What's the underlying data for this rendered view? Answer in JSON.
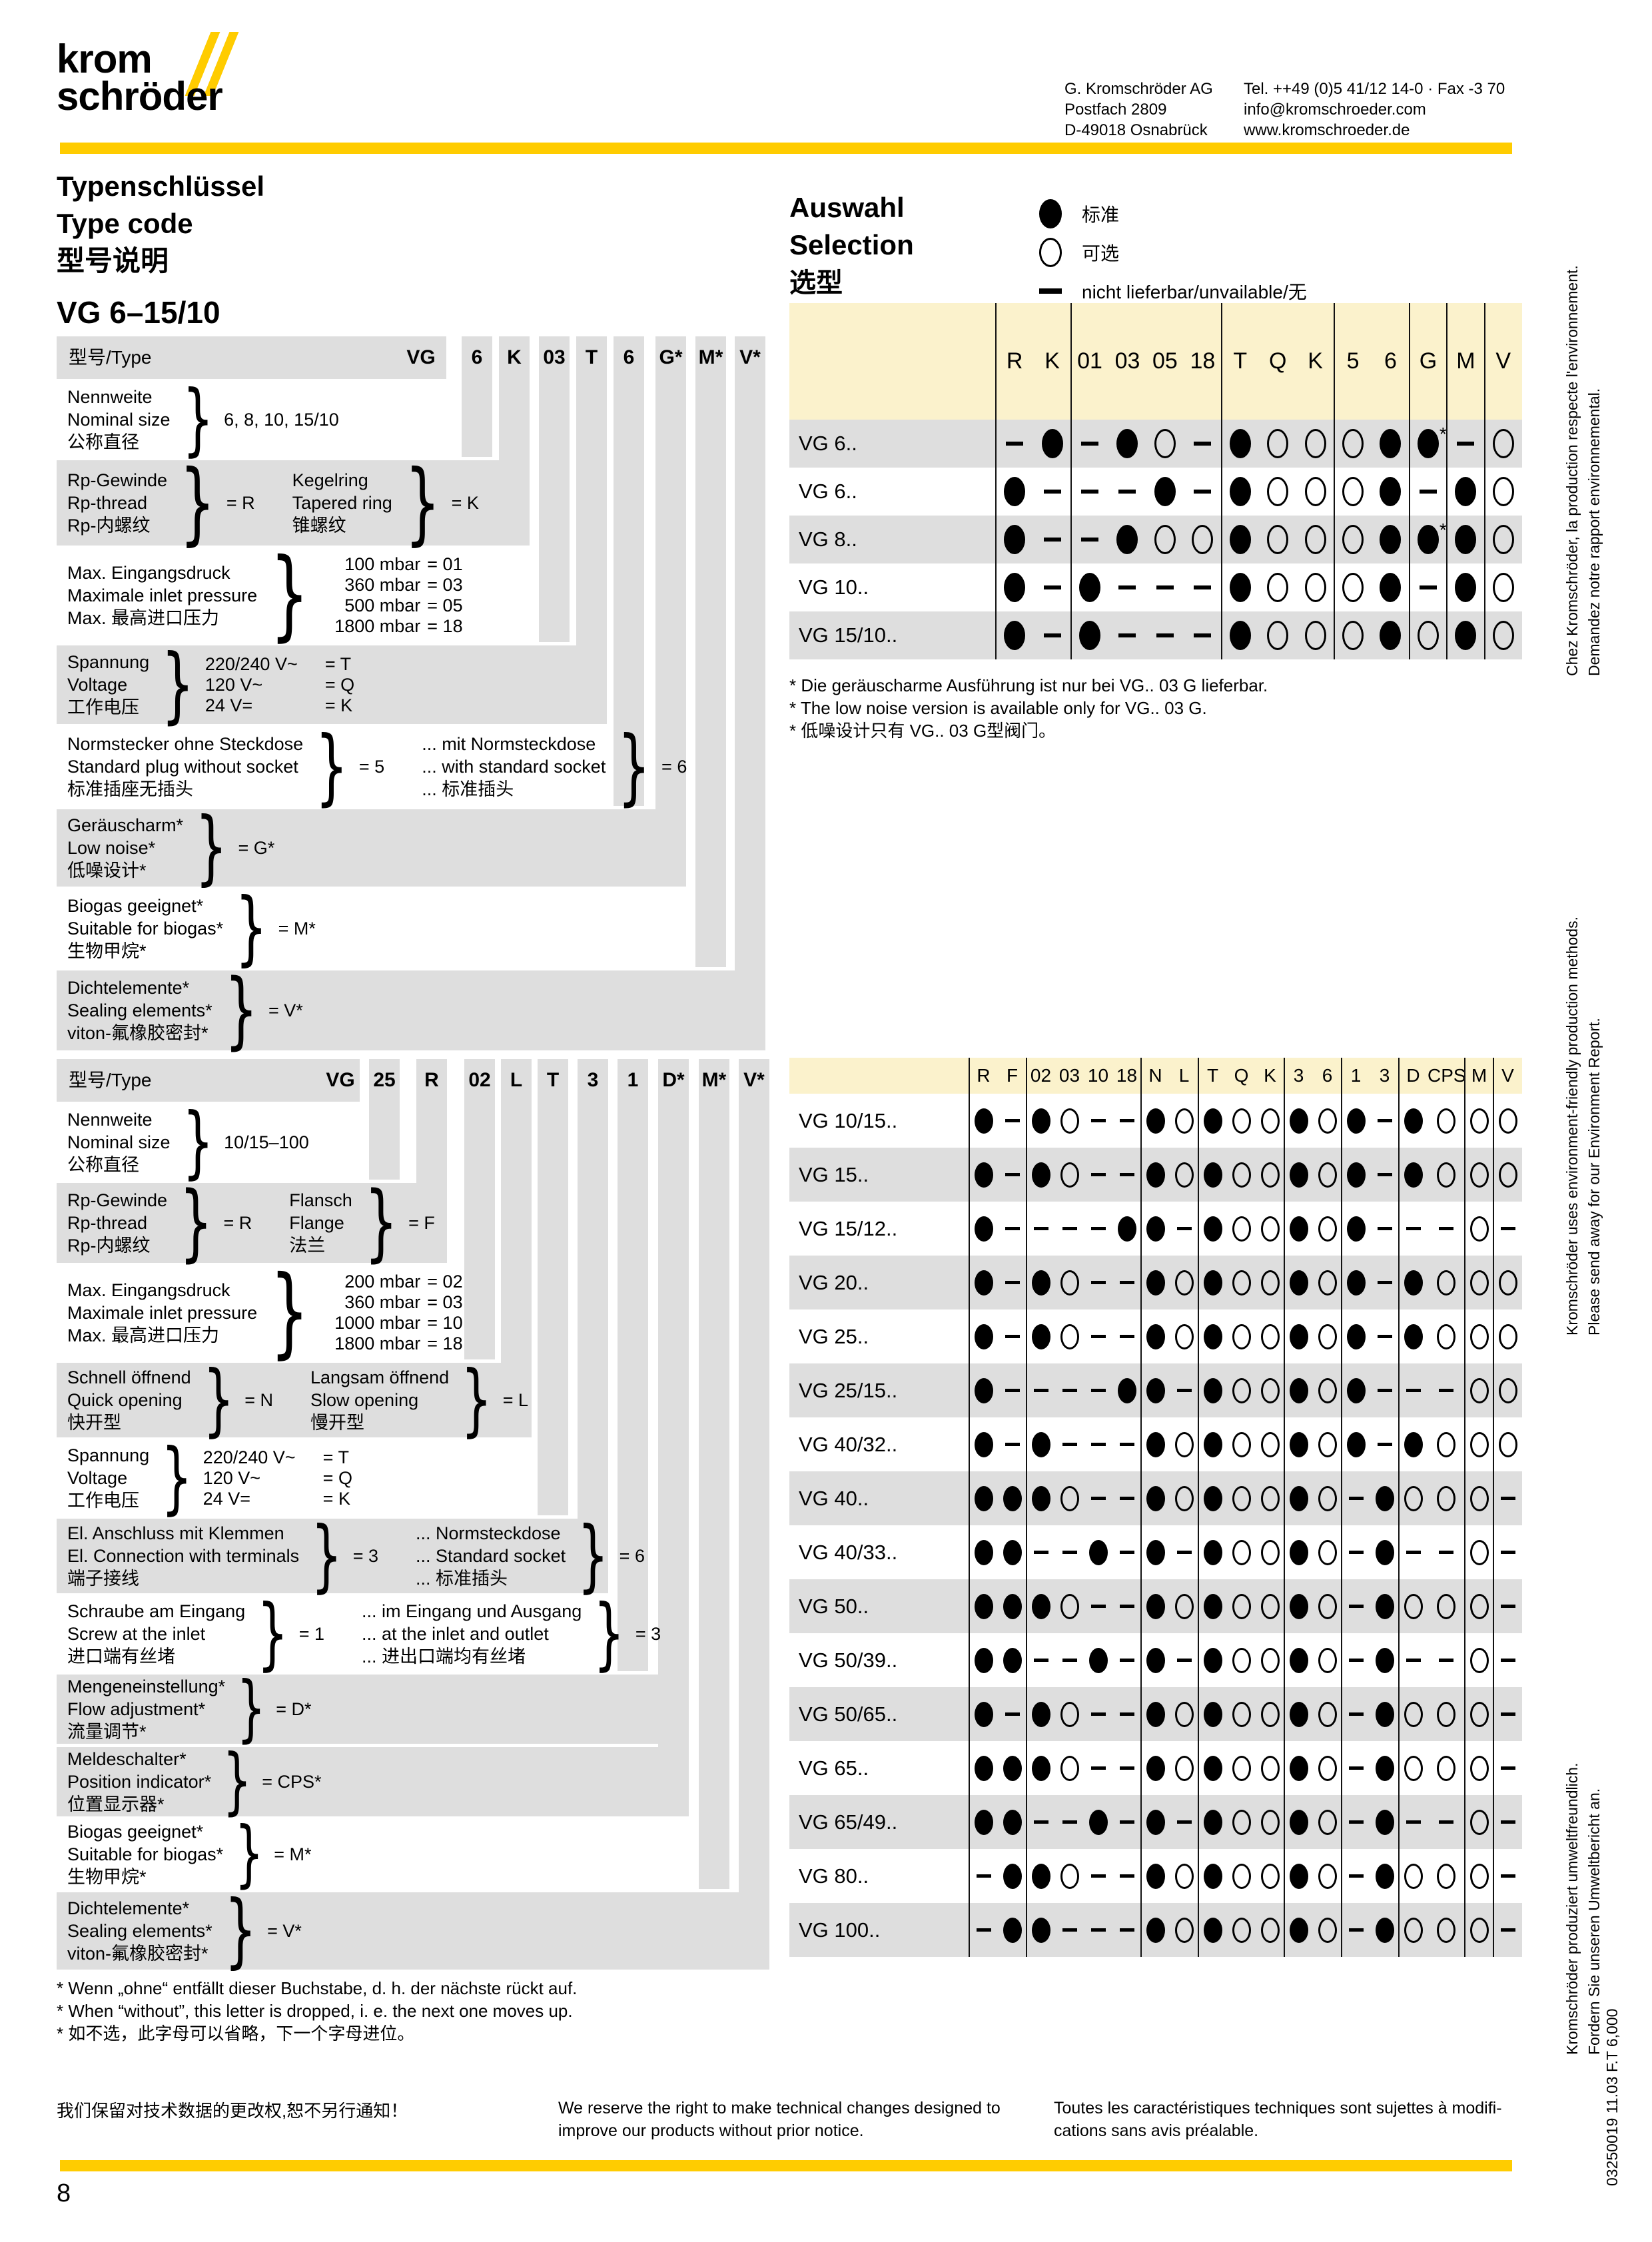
{
  "colors": {
    "brand_yellow": "#FFCC00",
    "band_yellow": "#FBF2CC",
    "row_gray": "#DEDEDE"
  },
  "page": {
    "number": "8"
  },
  "brand": {
    "logo_top": "krom",
    "logo_bottom": "schröder",
    "address": [
      "G. Kromschröder AG",
      "Postfach 2809",
      "D-49018 Osnabrück"
    ],
    "contact": [
      "Tel. ++49 (0)5 41/12 14-0 · Fax -3 70",
      "info@kromschroeder.com",
      "www.kromschroeder.de"
    ]
  },
  "heading": {
    "lines": [
      "Typenschlüssel",
      "Type code",
      "型号说明"
    ]
  },
  "selection": {
    "lines": [
      "Auswahl",
      "Selection",
      "选型"
    ],
    "legend": [
      {
        "symbol": "filled",
        "label": "标准"
      },
      {
        "symbol": "open",
        "label": "可选"
      },
      {
        "symbol": "dash",
        "label": "nicht lieferbar/unvailable/无"
      }
    ]
  },
  "section1": {
    "title": "VG 6–15/10",
    "type_label": "型号/Type",
    "codes": [
      "VG",
      "6",
      "K",
      "03",
      "T",
      "6",
      "G*",
      "M*",
      "V*"
    ],
    "rows": [
      {
        "bg": "white",
        "kind": "value",
        "lines": [
          "Nennweite",
          "Nominal size",
          "公称直径"
        ],
        "value": "6, 8, 10, 15/10"
      },
      {
        "bg": "gray",
        "kind": "pair2",
        "groups": [
          {
            "lines": [
              "Rp-Gewinde",
              "Rp-thread",
              "Rp-内螺纹"
            ],
            "value": "= R"
          },
          {
            "lines": [
              "Kegelring",
              "Tapered ring",
              "锥螺纹"
            ],
            "value": "= K"
          }
        ]
      },
      {
        "bg": "white",
        "kind": "list",
        "lines": [
          "Max. Eingangsdruck",
          "Maximale inlet pressure",
          "Max. 最高进口压力"
        ],
        "items": [
          [
            "100 mbar",
            "= 01"
          ],
          [
            "360 mbar",
            "= 03"
          ],
          [
            "500 mbar",
            "= 05"
          ],
          [
            "1800 mbar",
            "= 18"
          ]
        ]
      },
      {
        "bg": "gray",
        "kind": "list",
        "lines": [
          "Spannung",
          "Voltage",
          "工作电压"
        ],
        "items": [
          [
            "220/240 V~",
            "= T"
          ],
          [
            "120 V~",
            "= Q"
          ],
          [
            "24 V=",
            "= K"
          ]
        ]
      },
      {
        "bg": "white",
        "kind": "pair2",
        "groups": [
          {
            "lines": [
              "Normstecker ohne Steckdose",
              "Standard plug without socket",
              "标准插座无插头"
            ],
            "value": "= 5"
          },
          {
            "lines": [
              "... mit Normsteckdose",
              "... with standard socket",
              "... 标准插头"
            ],
            "value": "= 6"
          }
        ]
      },
      {
        "bg": "gray",
        "kind": "value",
        "lines": [
          "Geräuscharm*",
          "Low noise*",
          "低噪设计*"
        ],
        "value": "= G*"
      },
      {
        "bg": "white",
        "kind": "value",
        "lines": [
          "Biogas geeignet*",
          "Suitable for biogas*",
          "生物甲烷*"
        ],
        "value": "= M*"
      },
      {
        "bg": "gray",
        "kind": "value",
        "lines": [
          "Dichtelemente*",
          "Sealing elements*",
          "viton-氟橡胶密封*"
        ],
        "value": "= V*"
      }
    ],
    "matrix": {
      "columns": [
        "R",
        "K",
        "01",
        "03",
        "05",
        "18",
        "T",
        "Q",
        "K",
        "5",
        "6",
        "G",
        "M",
        "V"
      ],
      "rows": [
        {
          "label": "VG 6..",
          "bg": "gray",
          "cells": [
            "-",
            "f",
            "-",
            "f",
            "o",
            "-",
            "f",
            "o",
            "o",
            "o",
            "f",
            "f*",
            "-",
            "o"
          ]
        },
        {
          "label": "VG 6..",
          "bg": "white",
          "cells": [
            "f",
            "-",
            "-",
            "-",
            "f",
            "-",
            "f",
            "o",
            "o",
            "o",
            "f",
            "-",
            "f",
            "o"
          ]
        },
        {
          "label": "VG 8..",
          "bg": "gray",
          "cells": [
            "f",
            "-",
            "-",
            "f",
            "o",
            "o",
            "f",
            "o",
            "o",
            "o",
            "f",
            "f*",
            "f",
            "o"
          ]
        },
        {
          "label": "VG 10..",
          "bg": "white",
          "cells": [
            "f",
            "-",
            "f",
            "-",
            "-",
            "-",
            "f",
            "o",
            "o",
            "o",
            "f",
            "-",
            "f",
            "o"
          ]
        },
        {
          "label": "VG 15/10..",
          "bg": "gray",
          "cells": [
            "f",
            "-",
            "f",
            "-",
            "-",
            "-",
            "f",
            "o",
            "o",
            "o",
            "f",
            "o",
            "f",
            "o"
          ]
        }
      ],
      "footnotes": [
        "* Die geräuscharme Ausführung ist nur bei VG.. 03 G lieferbar.",
        "* The low noise version is available only for VG.. 03 G.",
        "* 低噪设计只有 VG.. 03 G型阀门。"
      ]
    }
  },
  "section2": {
    "title": "VG 10/15–100",
    "type_label": "型号/Type",
    "codes": [
      "VG",
      "25",
      "R",
      "02",
      "L",
      "T",
      "3",
      "1",
      "D*",
      "M*",
      "V*"
    ],
    "rows": [
      {
        "bg": "white",
        "kind": "value",
        "lines": [
          "Nennweite",
          "Nominal size",
          "公称直径"
        ],
        "value": "10/15–100"
      },
      {
        "bg": "gray",
        "kind": "pair2",
        "groups": [
          {
            "lines": [
              "Rp-Gewinde",
              "Rp-thread",
              "Rp-内螺纹"
            ],
            "value": "= R"
          },
          {
            "lines": [
              "Flansch",
              "Flange",
              "法兰"
            ],
            "value": "= F"
          }
        ]
      },
      {
        "bg": "white",
        "kind": "list",
        "lines": [
          "Max. Eingangsdruck",
          "Maximale inlet pressure",
          "Max. 最高进口压力"
        ],
        "items": [
          [
            "200 mbar",
            "= 02"
          ],
          [
            "360 mbar",
            "= 03"
          ],
          [
            "1000 mbar",
            "= 10"
          ],
          [
            "1800 mbar",
            "= 18"
          ]
        ]
      },
      {
        "bg": "gray",
        "kind": "pair2",
        "groups": [
          {
            "lines": [
              "Schnell öffnend",
              "Quick opening",
              "快开型"
            ],
            "value": "= N"
          },
          {
            "lines": [
              "Langsam öffnend",
              "Slow opening",
              "慢开型"
            ],
            "value": "= L"
          }
        ]
      },
      {
        "bg": "white",
        "kind": "list",
        "lines": [
          "Spannung",
          "Voltage",
          "工作电压"
        ],
        "items": [
          [
            "220/240 V~",
            "= T"
          ],
          [
            "120 V~",
            "= Q"
          ],
          [
            "24 V=",
            "= K"
          ]
        ]
      },
      {
        "bg": "gray",
        "kind": "pair2",
        "groups": [
          {
            "lines": [
              "El. Anschluss mit Klemmen",
              "El. Connection with terminals",
              "端子接线"
            ],
            "value": "= 3"
          },
          {
            "lines": [
              "... Normsteckdose",
              "... Standard socket",
              "... 标准插头"
            ],
            "value": "= 6"
          }
        ]
      },
      {
        "bg": "white",
        "kind": "pair2",
        "groups": [
          {
            "lines": [
              "Schraube am Eingang",
              "Screw at the inlet",
              "进口端有丝堵"
            ],
            "value": "= 1"
          },
          {
            "lines": [
              "... im Eingang und Ausgang",
              "... at the inlet and outlet",
              "... 进出口端均有丝堵"
            ],
            "value": "= 3"
          }
        ]
      },
      {
        "bg": "gray",
        "kind": "value",
        "lines": [
          "Mengeneinstellung*",
          "Flow adjustment*",
          "流量调节*"
        ],
        "value": "= D*"
      },
      {
        "bg": "gray",
        "kind": "value",
        "lines": [
          "Meldeschalter*",
          "Position indicator*",
          "位置显示器*"
        ],
        "value": "= CPS*"
      },
      {
        "bg": "white",
        "kind": "value",
        "lines": [
          "Biogas geeignet*",
          "Suitable for biogas*",
          "生物甲烷*"
        ],
        "value": "= M*"
      },
      {
        "bg": "gray",
        "kind": "value",
        "lines": [
          "Dichtelemente*",
          "Sealing elements*",
          "viton-氟橡胶密封*"
        ],
        "value": "= V*"
      }
    ],
    "footnotes": [
      "* Wenn „ohne“ entfällt dieser Buchstabe, d. h. der nächste rückt auf.",
      "* When “without”, this letter is dropped, i. e. the next one moves up.",
      "* 如不选，此字母可以省略，下一个字母进位。"
    ],
    "matrix": {
      "columns": [
        "R",
        "F",
        "02",
        "03",
        "10",
        "18",
        "N",
        "L",
        "T",
        "Q",
        "K",
        "3",
        "6",
        "1",
        "3",
        "D",
        "CPS",
        "M",
        "V"
      ],
      "rows": [
        {
          "label": "VG 10/15..",
          "bg": "white",
          "cells": [
            "f",
            "-",
            "f",
            "o",
            "-",
            "-",
            "f",
            "o",
            "f",
            "o",
            "o",
            "f",
            "o",
            "f",
            "-",
            "f",
            "o",
            "o",
            "o"
          ]
        },
        {
          "label": "VG 15..",
          "bg": "gray",
          "cells": [
            "f",
            "-",
            "f",
            "o",
            "-",
            "-",
            "f",
            "o",
            "f",
            "o",
            "o",
            "f",
            "o",
            "f",
            "-",
            "f",
            "o",
            "o",
            "o"
          ]
        },
        {
          "label": "VG 15/12..",
          "bg": "white",
          "cells": [
            "f",
            "-",
            "-",
            "-",
            "-",
            "f",
            "f",
            "-",
            "f",
            "o",
            "o",
            "f",
            "o",
            "f",
            "-",
            "-",
            "-",
            "o",
            "-"
          ]
        },
        {
          "label": "VG 20..",
          "bg": "gray",
          "cells": [
            "f",
            "-",
            "f",
            "o",
            "-",
            "-",
            "f",
            "o",
            "f",
            "o",
            "o",
            "f",
            "o",
            "f",
            "-",
            "f",
            "o",
            "o",
            "o"
          ]
        },
        {
          "label": "VG 25..",
          "bg": "white",
          "cells": [
            "f",
            "-",
            "f",
            "o",
            "-",
            "-",
            "f",
            "o",
            "f",
            "o",
            "o",
            "f",
            "o",
            "f",
            "-",
            "f",
            "o",
            "o",
            "o"
          ]
        },
        {
          "label": "VG 25/15..",
          "bg": "gray",
          "cells": [
            "f",
            "-",
            "-",
            "-",
            "-",
            "f",
            "f",
            "-",
            "f",
            "o",
            "o",
            "f",
            "o",
            "f",
            "-",
            "-",
            "-",
            "o",
            "o"
          ]
        },
        {
          "label": "VG 40/32..",
          "bg": "white",
          "cells": [
            "f",
            "-",
            "f",
            "-",
            "-",
            "-",
            "f",
            "o",
            "f",
            "o",
            "o",
            "f",
            "o",
            "f",
            "-",
            "f",
            "o",
            "o",
            "o"
          ]
        },
        {
          "label": "VG 40..",
          "bg": "gray",
          "cells": [
            "f",
            "f",
            "f",
            "o",
            "-",
            "-",
            "f",
            "o",
            "f",
            "o",
            "o",
            "f",
            "o",
            "-",
            "f",
            "o",
            "o",
            "o",
            "-"
          ]
        },
        {
          "label": "VG 40/33..",
          "bg": "white",
          "cells": [
            "f",
            "f",
            "-",
            "-",
            "f",
            "-",
            "f",
            "-",
            "f",
            "o",
            "o",
            "f",
            "o",
            "-",
            "f",
            "-",
            "-",
            "o",
            "-"
          ]
        },
        {
          "label": "VG 50..",
          "bg": "gray",
          "cells": [
            "f",
            "f",
            "f",
            "o",
            "-",
            "-",
            "f",
            "o",
            "f",
            "o",
            "o",
            "f",
            "o",
            "-",
            "f",
            "o",
            "o",
            "o",
            "-"
          ]
        },
        {
          "label": "VG 50/39..",
          "bg": "white",
          "cells": [
            "f",
            "f",
            "-",
            "-",
            "f",
            "-",
            "f",
            "-",
            "f",
            "o",
            "o",
            "f",
            "o",
            "-",
            "f",
            "-",
            "-",
            "o",
            "-"
          ]
        },
        {
          "label": "VG 50/65..",
          "bg": "gray",
          "cells": [
            "f",
            "-",
            "f",
            "o",
            "-",
            "-",
            "f",
            "o",
            "f",
            "o",
            "o",
            "f",
            "o",
            "-",
            "f",
            "o",
            "o",
            "o",
            "-"
          ]
        },
        {
          "label": "VG 65..",
          "bg": "white",
          "cells": [
            "f",
            "f",
            "f",
            "o",
            "-",
            "-",
            "f",
            "o",
            "f",
            "o",
            "o",
            "f",
            "o",
            "-",
            "f",
            "o",
            "o",
            "o",
            "-"
          ]
        },
        {
          "label": "VG 65/49..",
          "bg": "gray",
          "cells": [
            "f",
            "f",
            "-",
            "-",
            "f",
            "-",
            "f",
            "-",
            "f",
            "o",
            "o",
            "f",
            "o",
            "-",
            "f",
            "-",
            "-",
            "o",
            "-"
          ]
        },
        {
          "label": "VG 80..",
          "bg": "white",
          "cells": [
            "-",
            "f",
            "f",
            "o",
            "-",
            "-",
            "f",
            "o",
            "f",
            "o",
            "o",
            "f",
            "o",
            "-",
            "f",
            "o",
            "o",
            "o",
            "-"
          ]
        },
        {
          "label": "VG 100..",
          "bg": "gray",
          "cells": [
            "-",
            "f",
            "f",
            "-",
            "-",
            "-",
            "f",
            "o",
            "f",
            "o",
            "o",
            "f",
            "o",
            "-",
            "f",
            "o",
            "o",
            "o",
            "-"
          ]
        }
      ]
    }
  },
  "footer": {
    "zh": "我们保留对技术数据的更改权,恕不另行通知！",
    "en_lines": [
      "We reserve the right to make technical changes designed to",
      "improve our products without prior notice."
    ],
    "fr_lines": [
      "Toutes les caractéristiques techniques sont sujettes à modifi-",
      "cations sans avis préalable."
    ]
  },
  "margin_notes": {
    "fr": [
      "Chez Kromschröder, la production respecte l'environnement.",
      "Demandez notre rapport environnemental."
    ],
    "en": [
      "Kromschröder uses environment-friendly production methods.",
      "Please send away for our Environment Report."
    ],
    "de": [
      "Kromschröder produziert umweltfreundlich.",
      "Fordern Sie unseren Umweltbericht an."
    ],
    "code": "03250019   11.03   F.T   6,000"
  }
}
